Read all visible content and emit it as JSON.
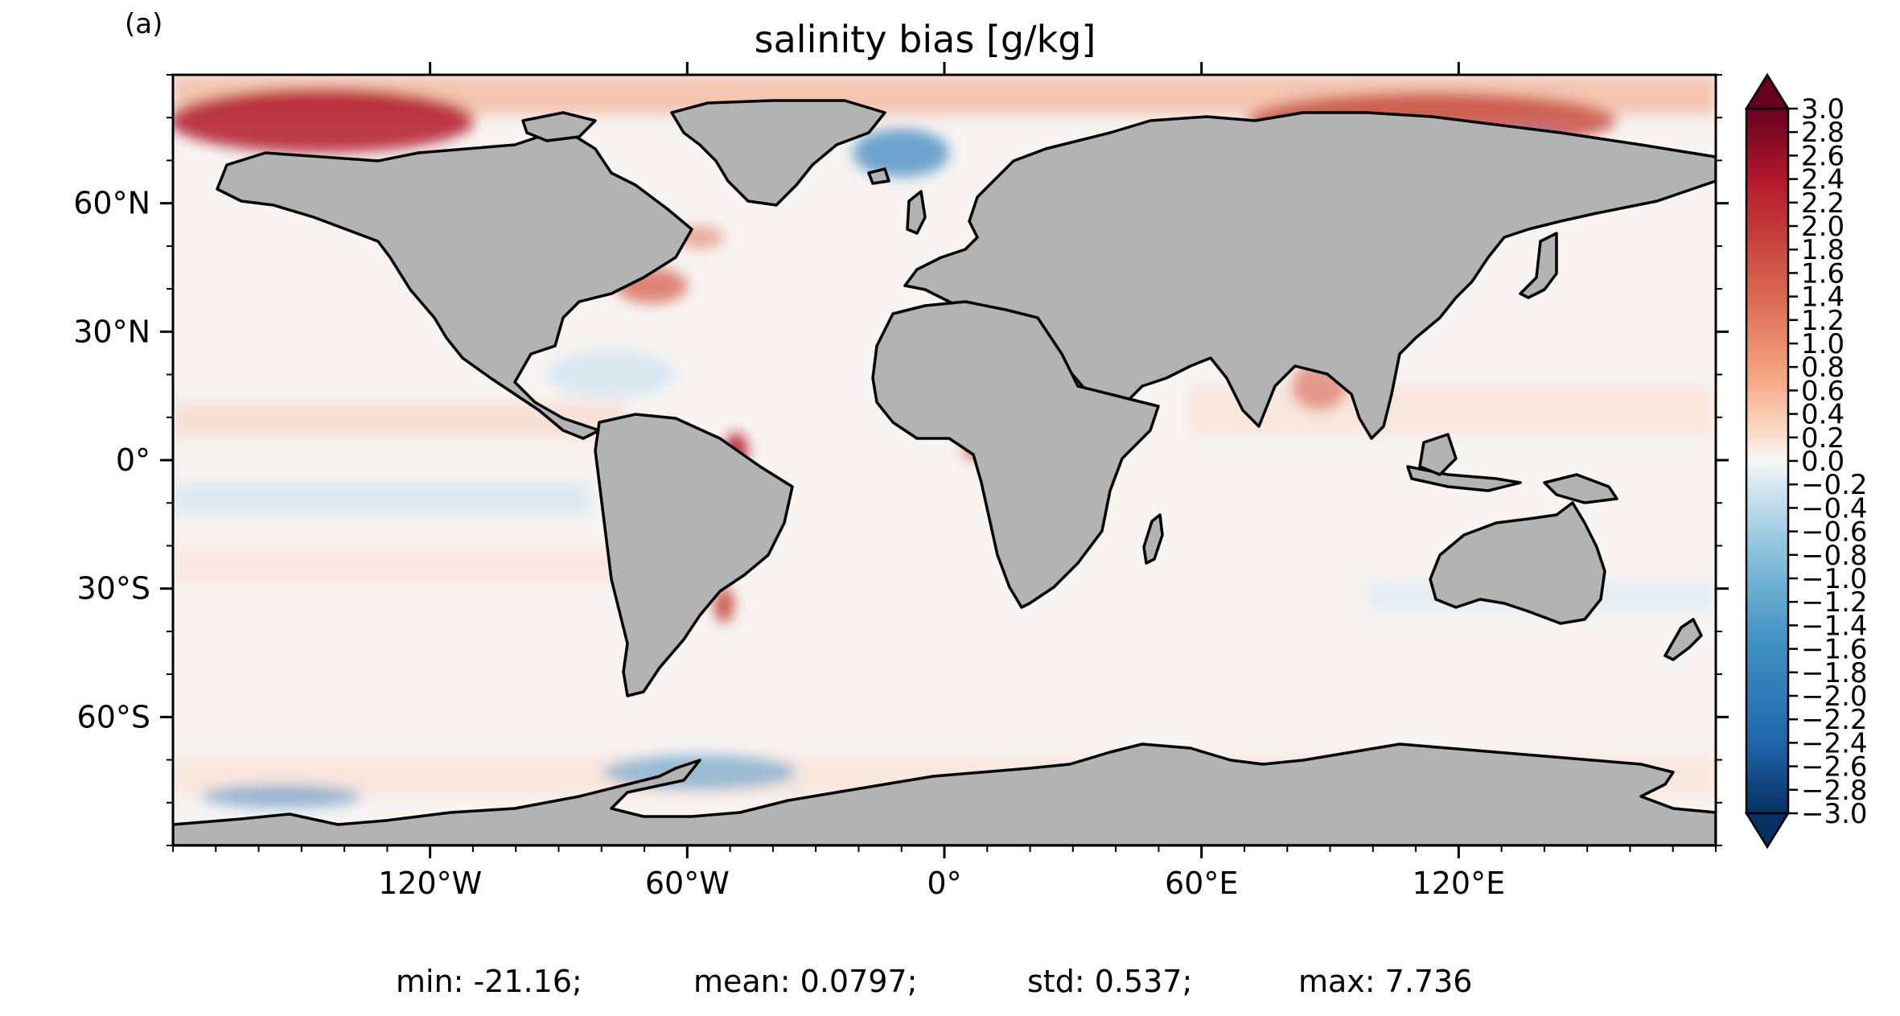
{
  "panel_label": "(a)",
  "title": "salinity bias [g/kg]",
  "map": {
    "projection": "plate-carree",
    "land_color": "#b3b3b3",
    "coastline_color": "#000000",
    "colormap": "RdBu_r",
    "lon_ticks": [
      {
        "lon": -120,
        "label": "120°W"
      },
      {
        "lon": -60,
        "label": "60°W"
      },
      {
        "lon": 0,
        "label": "0°"
      },
      {
        "lon": 60,
        "label": "60°E"
      },
      {
        "lon": 120,
        "label": "120°E"
      }
    ],
    "lat_ticks": [
      {
        "lat": 60,
        "label": "60°N"
      },
      {
        "lat": 30,
        "label": "30°N"
      },
      {
        "lat": 0,
        "label": "0°"
      },
      {
        "lat": -30,
        "label": "30°S"
      },
      {
        "lat": -60,
        "label": "60°S"
      }
    ]
  },
  "colorbar": {
    "min": -3.0,
    "max": 3.0,
    "extend": "both",
    "tick_labels": [
      "3.0",
      "2.8",
      "2.6",
      "2.4",
      "2.2",
      "2.0",
      "1.8",
      "1.6",
      "1.4",
      "1.2",
      "1.0",
      "0.8",
      "0.6",
      "0.4",
      "0.2",
      "0.0",
      "−0.2",
      "−0.4",
      "−0.6",
      "−0.8",
      "−1.0",
      "−1.2",
      "−1.4",
      "−1.6",
      "−1.8",
      "−2.0",
      "−2.2",
      "−2.4",
      "−2.6",
      "−2.8",
      "−3.0"
    ]
  },
  "stats": {
    "min": "min: -21.16;",
    "mean": "mean: 0.0797;",
    "std": "std: 0.537;",
    "max": "max: 7.736"
  }
}
